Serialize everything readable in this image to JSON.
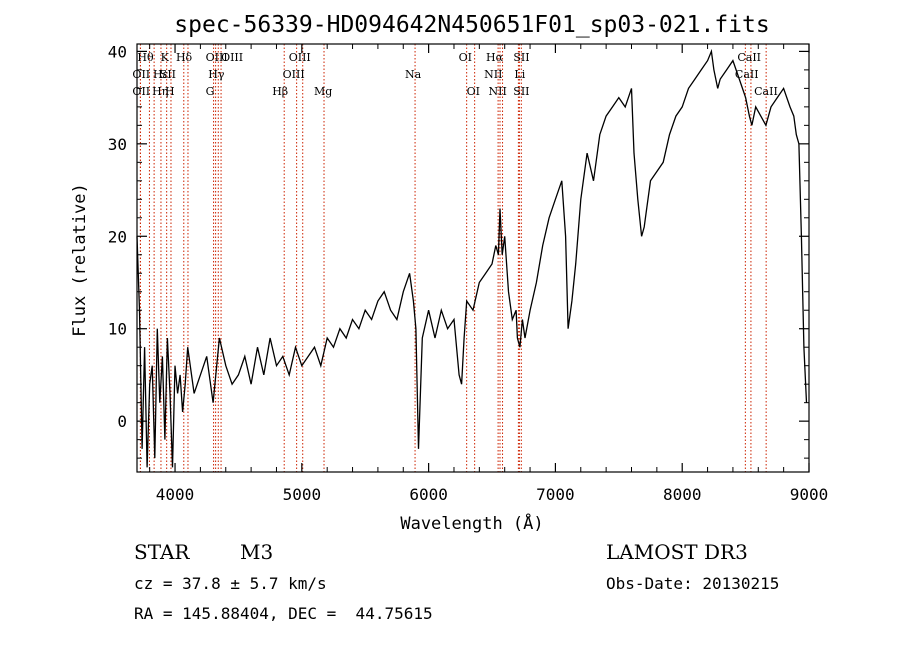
{
  "chart_data": {
    "type": "line",
    "title": "spec-56339-HD094642N450651F01_sp03-021.fits",
    "xlabel": "Wavelength (Å)",
    "ylabel": "Flux (relative)",
    "xlim": [
      3700,
      9000
    ],
    "ylim": [
      -5.5,
      40.8
    ],
    "x_ticks": [
      4000,
      5000,
      6000,
      7000,
      8000,
      9000
    ],
    "y_ticks": [
      0,
      10,
      20,
      30,
      40
    ],
    "grid": false,
    "series": [
      {
        "name": "flux",
        "x": [
          3700,
          3720,
          3740,
          3760,
          3780,
          3800,
          3820,
          3840,
          3860,
          3880,
          3900,
          3920,
          3940,
          3960,
          3980,
          4000,
          4020,
          4040,
          4060,
          4080,
          4100,
          4150,
          4200,
          4250,
          4300,
          4350,
          4400,
          4450,
          4500,
          4550,
          4600,
          4650,
          4700,
          4750,
          4800,
          4850,
          4900,
          4950,
          5000,
          5050,
          5100,
          5150,
          5200,
          5250,
          5300,
          5350,
          5400,
          5450,
          5500,
          5550,
          5600,
          5650,
          5700,
          5750,
          5800,
          5850,
          5880,
          5900,
          5920,
          5950,
          6000,
          6050,
          6100,
          6150,
          6200,
          6240,
          6260,
          6280,
          6300,
          6350,
          6400,
          6450,
          6500,
          6530,
          6550,
          6563,
          6580,
          6600,
          6630,
          6660,
          6690,
          6700,
          6720,
          6740,
          6760,
          6800,
          6850,
          6900,
          6950,
          7000,
          7050,
          7080,
          7100,
          7130,
          7160,
          7200,
          7250,
          7300,
          7350,
          7400,
          7450,
          7500,
          7550,
          7600,
          7620,
          7650,
          7680,
          7700,
          7720,
          7750,
          7800,
          7850,
          7900,
          7950,
          8000,
          8050,
          8100,
          8150,
          8200,
          8230,
          8250,
          8280,
          8300,
          8350,
          8400,
          8450,
          8500,
          8530,
          8550,
          8580,
          8620,
          8660,
          8700,
          8750,
          8800,
          8850,
          8880,
          8900,
          8920,
          8940,
          8960,
          8980
        ],
        "values": [
          20,
          12,
          -3,
          8,
          -5,
          4,
          6,
          -4,
          10,
          2,
          7,
          -2,
          9,
          3,
          -5,
          6,
          3,
          5,
          1,
          4,
          8,
          3,
          5,
          7,
          2,
          9,
          6,
          4,
          5,
          7,
          4,
          8,
          5,
          9,
          6,
          7,
          5,
          8,
          6,
          7,
          8,
          6,
          9,
          8,
          10,
          9,
          11,
          10,
          12,
          11,
          13,
          14,
          12,
          11,
          14,
          16,
          13,
          10,
          -3,
          9,
          12,
          9,
          12,
          10,
          11,
          5,
          4,
          9,
          13,
          12,
          15,
          16,
          17,
          19,
          18,
          23,
          18,
          20,
          14,
          11,
          12,
          9,
          8,
          11,
          9,
          12,
          15,
          19,
          22,
          24,
          26,
          20,
          10,
          13,
          17,
          24,
          29,
          26,
          31,
          33,
          34,
          35,
          34,
          36,
          29,
          24,
          20,
          21,
          23,
          26,
          27,
          28,
          31,
          33,
          34,
          36,
          37,
          38,
          39,
          40,
          38,
          36,
          37,
          38,
          39,
          37,
          35,
          33,
          32,
          34,
          33,
          32,
          34,
          35,
          36,
          34,
          33,
          31,
          30,
          20,
          8,
          2
        ]
      }
    ],
    "spectral_lines": [
      {
        "name": "OII",
        "wavelength": 3727,
        "row": 2,
        "dx": -8
      },
      {
        "name": "OII",
        "wavelength": 3727,
        "row": 3,
        "dx": -8
      },
      {
        "name": "Hθ",
        "wavelength": 3798,
        "row": 1,
        "dx": -12
      },
      {
        "name": "Hη",
        "wavelength": 3835,
        "row": 3,
        "dx": -2
      },
      {
        "name": "Hε",
        "wavelength": 3889,
        "row": 2,
        "dx": -8
      },
      {
        "name": "K",
        "wavelength": 3934,
        "row": 1,
        "dx": -6
      },
      {
        "name": "H",
        "wavelength": 3968,
        "row": 3,
        "dx": -6
      },
      {
        "name": "SII",
        "wavelength": 4069,
        "row": 2,
        "dx": -24
      },
      {
        "name": "Hδ",
        "wavelength": 4102,
        "row": 1,
        "dx": -12
      },
      {
        "name": "G",
        "wavelength": 4304,
        "row": 3,
        "dx": -8
      },
      {
        "name": "OIII",
        "wavelength": 4320,
        "row": 1,
        "dx": -10
      },
      {
        "name": "Hγ",
        "wavelength": 4341,
        "row": 2,
        "dx": -10
      },
      {
        "name": "OIII",
        "wavelength": 4363,
        "row": 1,
        "dx": 0
      },
      {
        "name": "Hβ",
        "wavelength": 4861,
        "row": 3,
        "dx": -12
      },
      {
        "name": "OIII",
        "wavelength": 4959,
        "row": 2,
        "dx": -14
      },
      {
        "name": "OIII",
        "wavelength": 5007,
        "row": 1,
        "dx": -14
      },
      {
        "name": "Mg",
        "wavelength": 5175,
        "row": 3,
        "dx": -10
      },
      {
        "name": "Na",
        "wavelength": 5893,
        "row": 2,
        "dx": -10
      },
      {
        "name": "OI",
        "wavelength": 6300,
        "row": 1,
        "dx": -8
      },
      {
        "name": "OI",
        "wavelength": 6363,
        "row": 3,
        "dx": -8
      },
      {
        "name": "NII",
        "wavelength": 6548,
        "row": 2,
        "dx": -14
      },
      {
        "name": "Hα",
        "wavelength": 6563,
        "row": 1,
        "dx": -14
      },
      {
        "name": "NII",
        "wavelength": 6583,
        "row": 3,
        "dx": -14
      },
      {
        "name": "Li",
        "wavelength": 6708,
        "row": 2,
        "dx": -4
      },
      {
        "name": "SII",
        "wavelength": 6716,
        "row": 1,
        "dx": -6
      },
      {
        "name": "SII",
        "wavelength": 6731,
        "row": 3,
        "dx": -8
      },
      {
        "name": "CaII",
        "wavelength": 8498,
        "row": 1,
        "dx": -8
      },
      {
        "name": "CaII",
        "wavelength": 8542,
        "row": 2,
        "dx": -16
      },
      {
        "name": "CaII",
        "wavelength": 8662,
        "row": 3,
        "dx": -12
      }
    ]
  },
  "info": {
    "object_class": "STAR",
    "subclass": "M3",
    "survey": "LAMOST DR3",
    "cz": "cz = 37.8 ± 5.7 km/s",
    "obs_date": "Obs-Date: 20130215",
    "coords": "RA = 145.88404, DEC =  44.75615"
  },
  "colors": {
    "line_marker": "#cc2200",
    "spectrum": "#000000",
    "axes": "#000000"
  }
}
